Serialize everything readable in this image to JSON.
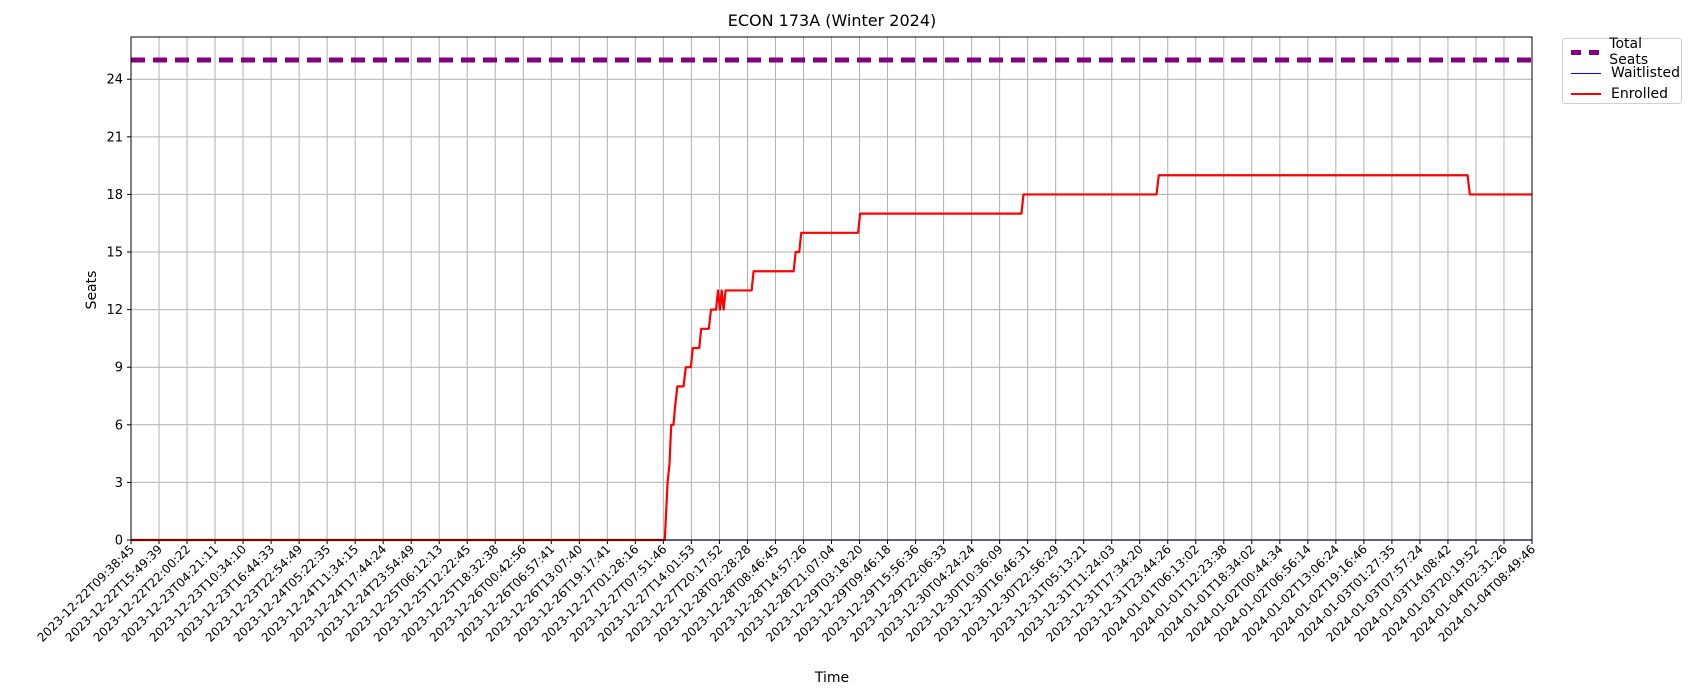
{
  "chart_data": {
    "type": "line",
    "title": "ECON 173A (Winter 2024)",
    "xlabel": "Time",
    "ylabel": "Seats",
    "ylim": [
      0,
      26.2
    ],
    "yticks": [
      0,
      3,
      6,
      9,
      12,
      15,
      18,
      21,
      24
    ],
    "grid": true,
    "legend_position": "outside-top-right",
    "xticks": [
      "2023-12-22T09:38:45",
      "2023-12-22T15:49:39",
      "2023-12-22T22:00:22",
      "2023-12-23T04:21:11",
      "2023-12-23T10:34:10",
      "2023-12-23T16:44:33",
      "2023-12-23T22:54:49",
      "2023-12-24T05:22:35",
      "2023-12-24T11:34:15",
      "2023-12-24T17:44:24",
      "2023-12-24T23:54:49",
      "2023-12-25T06:12:13",
      "2023-12-25T12:22:45",
      "2023-12-25T18:32:38",
      "2023-12-26T00:42:56",
      "2023-12-26T06:57:41",
      "2023-12-26T13:07:40",
      "2023-12-26T19:17:41",
      "2023-12-27T01:28:16",
      "2023-12-27T07:51:46",
      "2023-12-27T14:01:53",
      "2023-12-27T20:17:52",
      "2023-12-28T02:28:28",
      "2023-12-28T08:46:45",
      "2023-12-28T14:57:26",
      "2023-12-28T21:07:04",
      "2023-12-29T03:18:20",
      "2023-12-29T09:46:18",
      "2023-12-29T15:56:36",
      "2023-12-29T22:06:33",
      "2023-12-30T04:24:24",
      "2023-12-30T10:36:09",
      "2023-12-30T16:46:31",
      "2023-12-30T22:56:29",
      "2023-12-31T05:13:21",
      "2023-12-31T11:24:03",
      "2023-12-31T17:34:20",
      "2023-12-31T23:44:26",
      "2024-01-01T06:13:02",
      "2024-01-01T12:23:38",
      "2024-01-01T18:34:02",
      "2024-01-02T00:44:34",
      "2024-01-02T06:56:14",
      "2024-01-02T13:06:24",
      "2024-01-02T19:16:46",
      "2024-01-03T01:27:35",
      "2024-01-03T07:57:24",
      "2024-01-03T14:08:42",
      "2024-01-03T20:19:52",
      "2024-01-04T02:31:26",
      "2024-01-04T08:49:46"
    ],
    "series": [
      {
        "name": "Total Seats",
        "color": "#800080",
        "style": "dashed",
        "points": [
          [
            0,
            25
          ],
          [
            50,
            25
          ]
        ]
      },
      {
        "name": "Waitlisted",
        "color": "#0000ff",
        "style": "solid",
        "points": [
          [
            0,
            0
          ],
          [
            50,
            0
          ]
        ]
      },
      {
        "name": "Enrolled",
        "color": "#ff0000",
        "style": "solid",
        "points": [
          [
            0,
            0
          ],
          [
            19.05,
            0
          ],
          [
            19.15,
            3
          ],
          [
            19.22,
            4
          ],
          [
            19.28,
            6
          ],
          [
            19.36,
            6
          ],
          [
            19.42,
            7
          ],
          [
            19.5,
            8
          ],
          [
            19.72,
            8
          ],
          [
            19.8,
            9
          ],
          [
            19.98,
            9
          ],
          [
            20.05,
            10
          ],
          [
            20.28,
            10
          ],
          [
            20.35,
            11
          ],
          [
            20.62,
            11
          ],
          [
            20.7,
            12
          ],
          [
            20.88,
            12
          ],
          [
            20.95,
            13
          ],
          [
            21.02,
            12
          ],
          [
            21.08,
            13
          ],
          [
            21.15,
            12
          ],
          [
            21.22,
            13
          ],
          [
            22.15,
            13
          ],
          [
            22.22,
            14
          ],
          [
            23.65,
            14
          ],
          [
            23.72,
            15
          ],
          [
            23.85,
            15
          ],
          [
            23.92,
            16
          ],
          [
            25.95,
            16
          ],
          [
            26.02,
            17
          ],
          [
            31.78,
            17
          ],
          [
            31.85,
            18
          ],
          [
            36.6,
            18
          ],
          [
            36.68,
            19
          ],
          [
            47.7,
            19
          ],
          [
            47.78,
            18
          ],
          [
            50,
            18
          ]
        ]
      }
    ]
  }
}
